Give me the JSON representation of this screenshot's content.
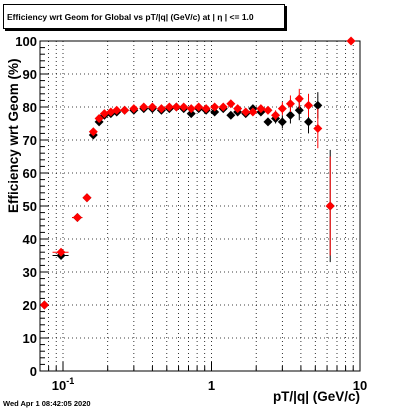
{
  "chart_data": {
    "type": "scatter",
    "title": "Efficiency wrt Geom for Global vs pT/|q| (GeV/c) at | η | <= 1.0",
    "xlabel": "pT/|q| (GeV/c)",
    "ylabel": "Efficiency wrt Geom (%)",
    "xscale": "log",
    "xlim": [
      0.07,
      10
    ],
    "ylim": [
      0,
      100
    ],
    "grid": true,
    "yticks": [
      "0",
      "10",
      "20",
      "30",
      "40",
      "50",
      "60",
      "70",
      "80",
      "90",
      "100"
    ],
    "xticks": [
      {
        "value": 0.1,
        "label": "10",
        "sup": "-1"
      },
      {
        "value": 1,
        "label": "1",
        "sup": ""
      },
      {
        "value": 10,
        "label": "10",
        "sup": ""
      }
    ],
    "series": [
      {
        "color": "#000000",
        "marker": "diamond",
        "points": [
          {
            "x": 0.075,
            "y": 20.0,
            "xerr": 0.003,
            "yerr": 0
          },
          {
            "x": 0.097,
            "y": 35.0,
            "xerr": 0.012,
            "yerr": 0.5
          },
          {
            "x": 0.125,
            "y": 46.5,
            "xerr": 0.01,
            "yerr": 0.5
          },
          {
            "x": 0.145,
            "y": 52.5,
            "xerr": 0,
            "yerr": 0.5
          },
          {
            "x": 0.16,
            "y": 71.5,
            "xerr": 0,
            "yerr": 0.5
          },
          {
            "x": 0.175,
            "y": 75.5,
            "xerr": 0,
            "yerr": 0.5
          },
          {
            "x": 0.19,
            "y": 77.5,
            "xerr": 0,
            "yerr": 0.5
          },
          {
            "x": 0.21,
            "y": 78.0,
            "xerr": 0,
            "yerr": 0.5
          },
          {
            "x": 0.23,
            "y": 78.5,
            "xerr": 0,
            "yerr": 0.5
          },
          {
            "x": 0.26,
            "y": 79.0,
            "xerr": 0,
            "yerr": 0.5
          },
          {
            "x": 0.3,
            "y": 79.0,
            "xerr": 0,
            "yerr": 0.5
          },
          {
            "x": 0.35,
            "y": 79.5,
            "xerr": 0,
            "yerr": 0.5
          },
          {
            "x": 0.4,
            "y": 79.5,
            "xerr": 0,
            "yerr": 0.5
          },
          {
            "x": 0.46,
            "y": 79.0,
            "xerr": 0,
            "yerr": 0.5
          },
          {
            "x": 0.52,
            "y": 79.5,
            "xerr": 0,
            "yerr": 0.5
          },
          {
            "x": 0.58,
            "y": 80.0,
            "xerr": 0,
            "yerr": 0.5
          },
          {
            "x": 0.65,
            "y": 79.5,
            "xerr": 0,
            "yerr": 0.5
          },
          {
            "x": 0.73,
            "y": 78.0,
            "xerr": 0,
            "yerr": 0.5
          },
          {
            "x": 0.82,
            "y": 79.5,
            "xerr": 0,
            "yerr": 0.5
          },
          {
            "x": 0.92,
            "y": 79.0,
            "xerr": 0,
            "yerr": 0.5
          },
          {
            "x": 1.05,
            "y": 78.5,
            "xerr": 0,
            "yerr": 0.5
          },
          {
            "x": 1.2,
            "y": 79.5,
            "xerr": 0,
            "yerr": 0.6
          },
          {
            "x": 1.35,
            "y": 77.5,
            "xerr": 0,
            "yerr": 0.6
          },
          {
            "x": 1.5,
            "y": 78.5,
            "xerr": 0,
            "yerr": 0.7
          },
          {
            "x": 1.7,
            "y": 78.0,
            "xerr": 0,
            "yerr": 0.7
          },
          {
            "x": 1.9,
            "y": 79.5,
            "xerr": 0,
            "yerr": 0.8
          },
          {
            "x": 2.15,
            "y": 78.5,
            "xerr": 0,
            "yerr": 1.0
          },
          {
            "x": 2.4,
            "y": 75.5,
            "xerr": 0,
            "yerr": 1.2
          },
          {
            "x": 2.7,
            "y": 76.5,
            "xerr": 0,
            "yerr": 1.5
          },
          {
            "x": 3.0,
            "y": 75.5,
            "xerr": 0,
            "yerr": 2.0
          },
          {
            "x": 3.4,
            "y": 77.5,
            "xerr": 0,
            "yerr": 2.5
          },
          {
            "x": 3.9,
            "y": 79.0,
            "xerr": 0,
            "yerr": 3.0
          },
          {
            "x": 4.5,
            "y": 75.5,
            "xerr": 0,
            "yerr": 3.5
          },
          {
            "x": 5.2,
            "y": 80.5,
            "xerr": 0,
            "yerr": 4.0
          },
          {
            "x": 6.3,
            "y": 50.0,
            "xerr": 0,
            "yerr": 17.0
          }
        ]
      },
      {
        "color": "#ff0000",
        "marker": "diamond",
        "points": [
          {
            "x": 0.075,
            "y": 20.0,
            "xerr": 0.003,
            "yerr": 0
          },
          {
            "x": 0.097,
            "y": 36.0,
            "xerr": 0.012,
            "yerr": 0.5
          },
          {
            "x": 0.125,
            "y": 46.5,
            "xerr": 0.01,
            "yerr": 0.5
          },
          {
            "x": 0.145,
            "y": 52.5,
            "xerr": 0,
            "yerr": 0.5
          },
          {
            "x": 0.16,
            "y": 72.5,
            "xerr": 0,
            "yerr": 0.5
          },
          {
            "x": 0.175,
            "y": 76.5,
            "xerr": 0,
            "yerr": 0.5
          },
          {
            "x": 0.19,
            "y": 78.0,
            "xerr": 0,
            "yerr": 0.5
          },
          {
            "x": 0.21,
            "y": 78.5,
            "xerr": 0,
            "yerr": 0.5
          },
          {
            "x": 0.23,
            "y": 79.0,
            "xerr": 0,
            "yerr": 0.5
          },
          {
            "x": 0.26,
            "y": 79.0,
            "xerr": 0,
            "yerr": 0.5
          },
          {
            "x": 0.3,
            "y": 79.5,
            "xerr": 0,
            "yerr": 0.5
          },
          {
            "x": 0.35,
            "y": 80.0,
            "xerr": 0,
            "yerr": 0.5
          },
          {
            "x": 0.4,
            "y": 80.0,
            "xerr": 0,
            "yerr": 0.5
          },
          {
            "x": 0.46,
            "y": 79.5,
            "xerr": 0,
            "yerr": 0.5
          },
          {
            "x": 0.52,
            "y": 80.0,
            "xerr": 0,
            "yerr": 0.5
          },
          {
            "x": 0.58,
            "y": 80.0,
            "xerr": 0,
            "yerr": 0.5
          },
          {
            "x": 0.65,
            "y": 80.0,
            "xerr": 0,
            "yerr": 0.5
          },
          {
            "x": 0.73,
            "y": 79.5,
            "xerr": 0,
            "yerr": 0.5
          },
          {
            "x": 0.82,
            "y": 80.0,
            "xerr": 0,
            "yerr": 0.5
          },
          {
            "x": 0.92,
            "y": 79.5,
            "xerr": 0,
            "yerr": 0.5
          },
          {
            "x": 1.05,
            "y": 80.0,
            "xerr": 0,
            "yerr": 0.5
          },
          {
            "x": 1.2,
            "y": 80.0,
            "xerr": 0,
            "yerr": 0.6
          },
          {
            "x": 1.35,
            "y": 81.0,
            "xerr": 0,
            "yerr": 0.6
          },
          {
            "x": 1.5,
            "y": 79.5,
            "xerr": 0,
            "yerr": 0.7
          },
          {
            "x": 1.7,
            "y": 78.5,
            "xerr": 0,
            "yerr": 0.7
          },
          {
            "x": 1.9,
            "y": 78.5,
            "xerr": 0,
            "yerr": 0.8
          },
          {
            "x": 2.15,
            "y": 79.5,
            "xerr": 0,
            "yerr": 1.0
          },
          {
            "x": 2.4,
            "y": 79.0,
            "xerr": 0,
            "yerr": 1.2
          },
          {
            "x": 2.7,
            "y": 77.5,
            "xerr": 0,
            "yerr": 1.5
          },
          {
            "x": 3.0,
            "y": 79.5,
            "xerr": 0,
            "yerr": 2.0
          },
          {
            "x": 3.4,
            "y": 81.0,
            "xerr": 0,
            "yerr": 2.5
          },
          {
            "x": 3.9,
            "y": 82.5,
            "xerr": 0,
            "yerr": 3.0
          },
          {
            "x": 4.5,
            "y": 80.5,
            "xerr": 0,
            "yerr": 3.5
          },
          {
            "x": 5.2,
            "y": 73.5,
            "xerr": 0,
            "yerr": 6.0
          },
          {
            "x": 6.3,
            "y": 50.0,
            "xerr": 0,
            "yerr": 15.0
          },
          {
            "x": 8.7,
            "y": 100.0,
            "xerr": 0,
            "yerr": 0
          }
        ]
      }
    ]
  },
  "timestamp": "Wed Apr  1 08:42:05 2020"
}
